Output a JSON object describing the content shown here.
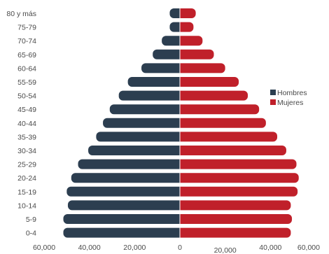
{
  "chart_data": {
    "type": "bar",
    "orientation": "horizontal",
    "categories": [
      "80 y más",
      "75-79",
      "70-74",
      "65-69",
      "60-64",
      "55-59",
      "50-54",
      "45-49",
      "40-44",
      "35-39",
      "30-34",
      "25-29",
      "20-24",
      "15-19",
      "10-14",
      "5-9",
      "0-4"
    ],
    "series": [
      {
        "name": "Hombres",
        "color": "#2c3e50",
        "values": [
          4500,
          4500,
          8000,
          12000,
          17000,
          23000,
          27000,
          31000,
          34000,
          37000,
          40500,
          45000,
          48000,
          50000,
          49500,
          51500,
          51500
        ]
      },
      {
        "name": "Mujeres",
        "color": "#c0202a",
        "values": [
          7000,
          6000,
          10000,
          15000,
          20000,
          26000,
          30000,
          35000,
          38000,
          43000,
          47000,
          51500,
          52500,
          52000,
          49000,
          49500,
          49000
        ]
      }
    ],
    "xlim": [
      -60000,
      60000
    ],
    "x_ticks": [
      -60000,
      -40000,
      -20000,
      0,
      20000,
      40000,
      60000
    ],
    "x_tick_labels": [
      "60,000",
      "40,000",
      "20,000",
      "0",
      "20,000",
      "40,000",
      "60,000"
    ],
    "grid": false,
    "legend_position": "right-middle",
    "title": "",
    "xlabel": "",
    "ylabel": ""
  }
}
